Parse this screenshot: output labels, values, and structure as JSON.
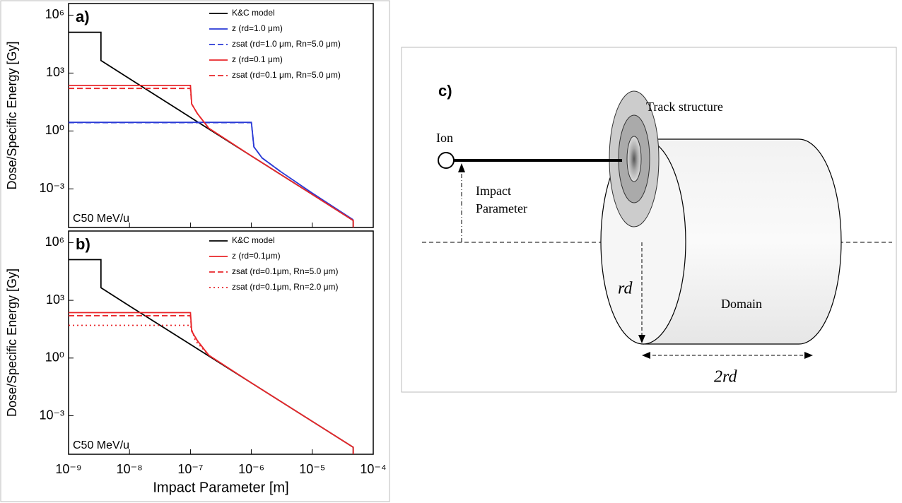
{
  "chart_data": [
    {
      "type": "line",
      "panel_label": "a)",
      "annotation": "C50 MeV/u",
      "ylabel": "Dose/Specific Energy [Gy]",
      "log_x": true,
      "log_y": true,
      "xlim": [
        1e-09,
        0.0001
      ],
      "ylim": [
        1e-05,
        4000000.0
      ],
      "xticks": [
        {
          "value": 1e-09,
          "label": "10⁻⁹"
        },
        {
          "value": 1e-08,
          "label": "10⁻⁸"
        },
        {
          "value": 1e-07,
          "label": "10⁻⁷"
        },
        {
          "value": 1e-06,
          "label": "10⁻⁶"
        },
        {
          "value": 1e-05,
          "label": "10⁻⁵"
        },
        {
          "value": 0.0001,
          "label": "10⁻⁴"
        }
      ],
      "yticks": [
        {
          "value": 0.001,
          "label": "10⁻³"
        },
        {
          "value": 1,
          "label": "10⁰"
        },
        {
          "value": 1000,
          "label": "10³"
        },
        {
          "value": 1000000.0,
          "label": "10⁶"
        }
      ],
      "series": [
        {
          "name": "K&C model",
          "color": "#000000",
          "linestyle": "solid",
          "x": [
            1e-09,
            3.4e-09,
            3.4e-09,
            1e-08,
            1e-07,
            1e-06,
            1e-05,
            4.7e-05,
            4.7e-05
          ],
          "values": [
            130000,
            130000,
            4500,
            510,
            5.1,
            0.051,
            0.00051,
            2.3e-05,
            1e-05
          ]
        },
        {
          "name": "z (rd=1.0 μm)",
          "color": "#2a3ad6",
          "linestyle": "solid",
          "x": [
            1e-09,
            1e-06,
            1.1e-06,
            1.5e-06,
            3e-06,
            1e-05,
            4.7e-05
          ],
          "values": [
            2.8,
            2.8,
            0.15,
            0.04,
            0.008,
            0.0006,
            2.5e-05
          ]
        },
        {
          "name": "zsat (rd=1.0 μm, Rn=5.0 μm)",
          "color": "#2a3ad6",
          "linestyle": "dashed",
          "x": [
            1e-09,
            1e-06,
            1.1e-06,
            1.5e-06,
            3e-06
          ],
          "values": [
            2.7,
            2.7,
            0.15,
            0.04,
            0.008
          ]
        },
        {
          "name": "z (rd=0.1 μm)",
          "color": "#e8262a",
          "linestyle": "solid",
          "x": [
            1e-09,
            1e-07,
            1.05e-07,
            1.3e-07,
            2e-07,
            1e-06,
            1e-05,
            4.7e-05,
            4.7e-05
          ],
          "values": [
            230,
            230,
            25,
            8,
            1.4,
            0.051,
            0.00051,
            2.3e-05,
            1e-05
          ]
        },
        {
          "name": "zsat (rd=0.1 μm, Rn=5.0 μm)",
          "color": "#e8262a",
          "linestyle": "dashed",
          "x": [
            1e-09,
            1e-07,
            1.05e-07,
            1.3e-07,
            2e-07
          ],
          "values": [
            160,
            160,
            25,
            8,
            1.4
          ]
        }
      ]
    },
    {
      "type": "line",
      "panel_label": "b)",
      "annotation": "C50 MeV/u",
      "ylabel": "Dose/Specific Energy [Gy]",
      "xlabel": "Impact Parameter [m]",
      "log_x": true,
      "log_y": true,
      "xlim": [
        1e-09,
        0.0001
      ],
      "ylim": [
        1e-05,
        4000000.0
      ],
      "xticks": [
        {
          "value": 1e-09,
          "label": "10⁻⁹"
        },
        {
          "value": 1e-08,
          "label": "10⁻⁸"
        },
        {
          "value": 1e-07,
          "label": "10⁻⁷"
        },
        {
          "value": 1e-06,
          "label": "10⁻⁶"
        },
        {
          "value": 1e-05,
          "label": "10⁻⁵"
        },
        {
          "value": 0.0001,
          "label": "10⁻⁴"
        }
      ],
      "yticks": [
        {
          "value": 0.001,
          "label": "10⁻³"
        },
        {
          "value": 1,
          "label": "10⁰"
        },
        {
          "value": 1000,
          "label": "10³"
        },
        {
          "value": 1000000.0,
          "label": "10⁶"
        }
      ],
      "series": [
        {
          "name": "K&C model",
          "color": "#000000",
          "linestyle": "solid",
          "x": [
            1e-09,
            3.4e-09,
            3.4e-09,
            1e-08,
            1e-07,
            1e-06,
            1e-05,
            4.7e-05,
            4.7e-05
          ],
          "values": [
            130000,
            130000,
            4500,
            510,
            5.1,
            0.051,
            0.00051,
            2.3e-05,
            1e-05
          ]
        },
        {
          "name": "z (rd=0.1μm)",
          "color": "#e8262a",
          "linestyle": "solid",
          "x": [
            1e-09,
            1e-07,
            1.05e-07,
            1.3e-07,
            2e-07,
            1e-06,
            1e-05,
            4.7e-05,
            4.7e-05
          ],
          "values": [
            230,
            230,
            25,
            8,
            1.4,
            0.051,
            0.00051,
            2.3e-05,
            1e-05
          ]
        },
        {
          "name": "zsat (rd=0.1μm, Rn=5.0 μm)",
          "color": "#e8262a",
          "linestyle": "dashed",
          "x": [
            1e-09,
            1e-07,
            1.05e-07,
            1.3e-07,
            2e-07
          ],
          "values": [
            160,
            160,
            25,
            8,
            1.4
          ]
        },
        {
          "name": "zsat (rd=0.1μm, Rn=2.0 μm)",
          "color": "#e8262a",
          "linestyle": "dotted",
          "x": [
            1e-09,
            1e-07,
            1.2e-07,
            2e-07
          ],
          "values": [
            50,
            50,
            8,
            1.4
          ]
        }
      ]
    }
  ],
  "diagram": {
    "panel_label": "c)",
    "track_label": "Track structure",
    "ion_label": "Ion",
    "impact_label": [
      "Impact",
      "Parameter"
    ],
    "radius_label": "rd",
    "domain_label": "Domain",
    "length_label": "2rd"
  }
}
